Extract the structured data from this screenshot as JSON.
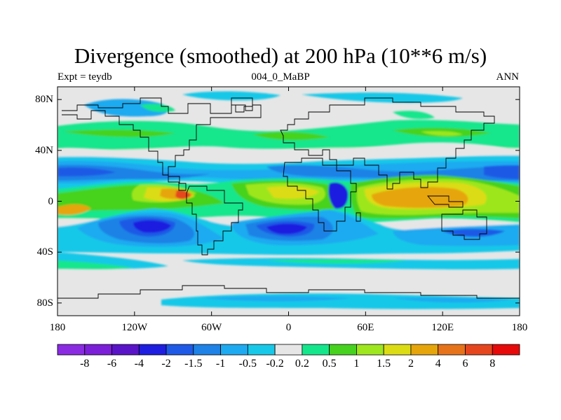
{
  "title": "Divergence (smoothed) at 200 hPa (10**6 m/s)",
  "subtitle_left": "Expt = teydb",
  "subtitle_center": "004_0_MaBP",
  "subtitle_right": "ANN",
  "map": {
    "variable": "Divergence (smoothed)",
    "level": "200 hPa",
    "units": "10**6 m/s",
    "lon_range": [
      -180,
      180
    ],
    "lat_range": [
      -90,
      90
    ],
    "y_ticks": [
      {
        "lat": 80,
        "label": "80N"
      },
      {
        "lat": 40,
        "label": "40N"
      },
      {
        "lat": 0,
        "label": "0"
      },
      {
        "lat": -40,
        "label": "40S"
      },
      {
        "lat": -80,
        "label": "80S"
      }
    ],
    "x_ticks": [
      {
        "lon": -180,
        "label": "180"
      },
      {
        "lon": -120,
        "label": "120W"
      },
      {
        "lon": -60,
        "label": "60W"
      },
      {
        "lon": 0,
        "label": "0"
      },
      {
        "lon": 60,
        "label": "60E"
      },
      {
        "lon": 120,
        "label": "120E"
      },
      {
        "lon": 180,
        "label": "180"
      }
    ]
  },
  "colorbar": {
    "colors": [
      "#8a2be2",
      "#7b1fd8",
      "#5a14c8",
      "#1e1ee0",
      "#1f5ae6",
      "#1e82e6",
      "#1eaaf0",
      "#18c8e8",
      "#e6e6e6",
      "#14e68c",
      "#46d21e",
      "#9ee61e",
      "#dcdc14",
      "#e6a50a",
      "#e6731a",
      "#e6461e",
      "#e60a0a"
    ],
    "labels": [
      "-8",
      "-6",
      "-4",
      "-2",
      "-1.5",
      "-1",
      "-0.5",
      "-0.2",
      "0.2",
      "0.5",
      "1",
      "1.5",
      "2",
      "4",
      "6",
      "8"
    ]
  },
  "colors": {
    "ocean_bg": "#e6e6e6",
    "strong_neg": "#1e1ee0",
    "neg": "#1e82e6",
    "weak_neg": "#18c8e8",
    "weak_pos": "#14e68c",
    "pos": "#46d21e",
    "mid_pos": "#dcdc14",
    "strong_pos": "#e6a50a",
    "max_pos": "#e6461e"
  }
}
